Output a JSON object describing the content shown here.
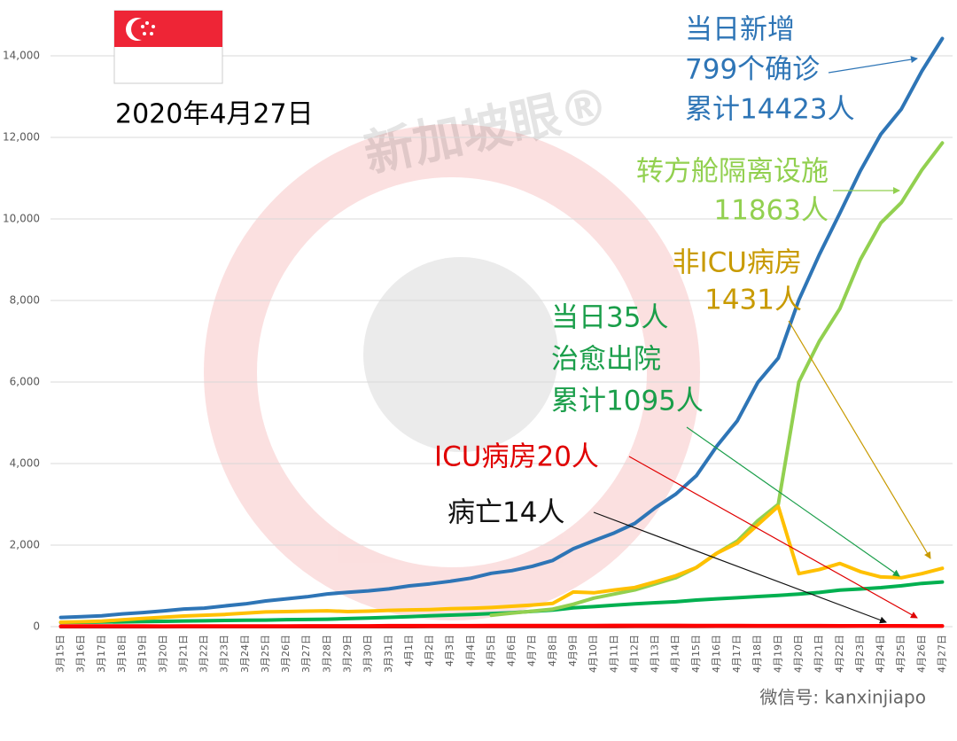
{
  "chart_data": {
    "type": "line",
    "date_label": "2020年4月27日",
    "watermark": "新加坡眼®",
    "footer": "微信号: kanxinjiapo",
    "categories": [
      "3月15日",
      "3月16日",
      "3月17日",
      "3月18日",
      "3月19日",
      "3月20日",
      "3月21日",
      "3月22日",
      "3月23日",
      "3月24日",
      "3月25日",
      "3月26日",
      "3月27日",
      "3月28日",
      "3月29日",
      "3月30日",
      "3月31日",
      "4月1日",
      "4月2日",
      "4月3日",
      "4月4日",
      "4月5日",
      "4月6日",
      "4月7日",
      "4月8日",
      "4月9日",
      "4月10日",
      "4月11日",
      "4月12日",
      "4月13日",
      "4月14日",
      "4月15日",
      "4月16日",
      "4月17日",
      "4月18日",
      "4月19日",
      "4月20日",
      "4月21日",
      "4月22日",
      "4月23日",
      "4月24日",
      "4月25日",
      "4月26日",
      "4月27日"
    ],
    "series": [
      {
        "color": "#00b050",
        "values": [
          105,
          109,
          114,
          117,
          124,
          131,
          140,
          144,
          152,
          156,
          160,
          172,
          177,
          183,
          198,
          212,
          228,
          245,
          266,
          282,
          297,
          320,
          344,
          377,
          406,
          460,
          492,
          528,
          560,
          586,
          610,
          652,
          683,
          708,
          740,
          768,
          801,
          839,
          896,
          924,
          956,
          1002,
          1060,
          1095
        ]
      },
      {
        "color": "#92d050",
        "values": [
          null,
          null,
          null,
          null,
          null,
          null,
          null,
          null,
          null,
          null,
          null,
          null,
          null,
          null,
          null,
          null,
          null,
          null,
          null,
          null,
          null,
          280,
          330,
          380,
          430,
          550,
          700,
          800,
          900,
          1050,
          1200,
          1450,
          1800,
          2100,
          2600,
          3000,
          6000,
          7000,
          7800,
          9000,
          9900,
          10400,
          11200,
          11863
        ]
      },
      {
        "color": "#ffc000",
        "values": [
          108,
          120,
          135,
          170,
          200,
          230,
          260,
          280,
          300,
          330,
          360,
          370,
          380,
          390,
          370,
          380,
          400,
          410,
          420,
          440,
          450,
          470,
          500,
          530,
          570,
          850,
          830,
          900,
          960,
          1100,
          1250,
          1450,
          1800,
          2050,
          2500,
          2950,
          1300,
          1400,
          1550,
          1350,
          1220,
          1200,
          1300,
          1431
        ]
      },
      {
        "color": "#2e75b6",
        "values": [
          226,
          243,
          266,
          313,
          345,
          385,
          432,
          455,
          509,
          558,
          631,
          683,
          732,
          802,
          844,
          879,
          926,
          1000,
          1049,
          1114,
          1189,
          1309,
          1375,
          1481,
          1623,
          1910,
          2108,
          2299,
          2532,
          2918,
          3252,
          3699,
          4427,
          5050,
          5992,
          6588,
          8014,
          9125,
          10141,
          11178,
          12075,
          12693,
          13624,
          14423
        ]
      },
      {
        "color": "#c00000",
        "values": [
          0,
          0,
          0,
          0,
          0,
          0,
          2,
          2,
          2,
          2,
          2,
          2,
          2,
          2,
          2,
          3,
          3,
          3,
          4,
          5,
          5,
          6,
          6,
          6,
          6,
          6,
          6,
          7,
          8,
          8,
          8,
          9,
          10,
          11,
          11,
          11,
          11,
          11,
          11,
          12,
          12,
          12,
          14,
          14
        ]
      },
      {
        "color": "#ff0000",
        "values": [
          13,
          15,
          17,
          17,
          15,
          14,
          15,
          17,
          17,
          17,
          17,
          17,
          19,
          19,
          20,
          19,
          23,
          24,
          24,
          25,
          25,
          26,
          26,
          28,
          29,
          29,
          29,
          30,
          31,
          31,
          31,
          29,
          28,
          28,
          25,
          25,
          24,
          23,
          22,
          22,
          22,
          21,
          20,
          20
        ]
      }
    ],
    "ylim": [
      0,
      15000
    ],
    "yticks": [
      0,
      {
        "value": 2000,
        "label": "2,000"
      },
      {
        "value": 4000,
        "label": "4,000"
      },
      {
        "value": 6000,
        "label": "6,000"
      },
      {
        "value": 8000,
        "label": "8,000"
      },
      {
        "value": 10000,
        "label": "10,000"
      },
      {
        "value": 12000,
        "label": "12,000"
      },
      {
        "value": 14000,
        "label": "14,000"
      }
    ],
    "grid": true,
    "annotations": [
      {
        "color": "#2e75b6",
        "lines": [
          "当日新增",
          "799个确诊",
          "累计14423人"
        ]
      },
      {
        "color": "#92d050",
        "lines": [
          "转方舱隔离设施",
          "11863人"
        ]
      },
      {
        "color": "#c89a00",
        "lines": [
          "非ICU病房",
          "1431人"
        ]
      },
      {
        "color": "#1a9e4a",
        "lines": [
          "当日35人",
          "治愈出院",
          "累计1095人"
        ]
      },
      {
        "color": "#e00000",
        "lines": [
          "ICU病房20人"
        ]
      },
      {
        "color": "#111111",
        "lines": [
          "病亡14人"
        ]
      }
    ]
  }
}
